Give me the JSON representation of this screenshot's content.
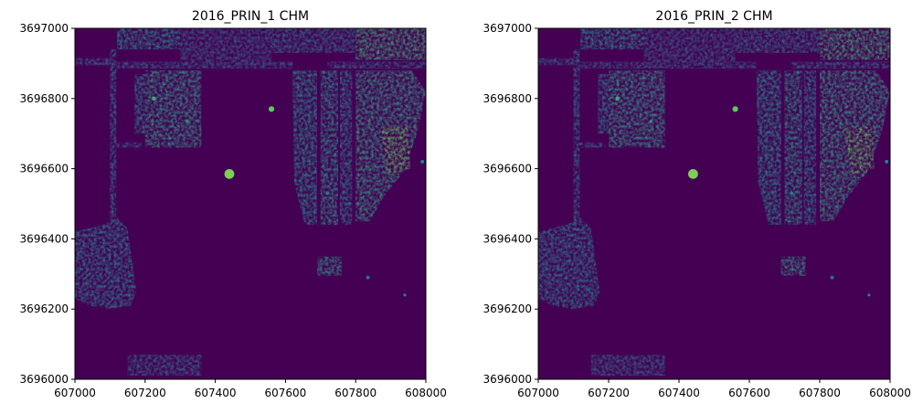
{
  "figure": {
    "panel_count": 2,
    "colormap": "viridis",
    "colors": {
      "background": "#ffffff",
      "viridis_low": "#440154",
      "viridis_mid": "#21918c",
      "viridis_high": "#fde725"
    }
  },
  "chart_data": [
    {
      "type": "heatmap",
      "title": "2016_PRIN_1 CHM",
      "xlabel": "",
      "ylabel": "",
      "xlim": [
        607000,
        608000
      ],
      "ylim": [
        3696000,
        3697000
      ],
      "xticks": [
        607000,
        607200,
        607400,
        607600,
        607800,
        608000
      ],
      "yticks": [
        3696000,
        3696200,
        3696400,
        3696600,
        3696800,
        3697000
      ],
      "xtick_labels": [
        "607000",
        "607200",
        "607400",
        "607600",
        "607800",
        "608000"
      ],
      "ytick_labels": [
        "3696000",
        "3696200",
        "3696400",
        "3696600",
        "3696800",
        "3697000"
      ],
      "grid": false,
      "colorbar": false
    },
    {
      "type": "heatmap",
      "title": "2016_PRIN_2 CHM",
      "xlabel": "",
      "ylabel": "",
      "xlim": [
        607000,
        608000
      ],
      "ylim": [
        3696000,
        3697000
      ],
      "xticks": [
        607000,
        607200,
        607400,
        607600,
        607800,
        608000
      ],
      "yticks": [
        3696000,
        3696200,
        3696400,
        3696600,
        3696800,
        3697000
      ],
      "xtick_labels": [
        "607000",
        "607200",
        "607400",
        "607600",
        "607800",
        "608000"
      ],
      "ytick_labels": [
        "3696000",
        "3696200",
        "3696400",
        "3696600",
        "3696800",
        "3697000"
      ],
      "grid": false,
      "colorbar": false
    }
  ],
  "canopy_regions": [
    {
      "kind": "rect",
      "x": [
        607100,
        607118
      ],
      "y": [
        3696250,
        3696940
      ],
      "level": 0.42
    },
    {
      "kind": "rect",
      "x": [
        607000,
        607110
      ],
      "y": [
        3696895,
        3696915
      ],
      "level": 0.35
    },
    {
      "kind": "rect",
      "x": [
        607110,
        607620
      ],
      "y": [
        3696885,
        3696905
      ],
      "level": 0.35
    },
    {
      "kind": "rect",
      "x": [
        607720,
        608000
      ],
      "y": [
        3696885,
        3696905
      ],
      "level": 0.35
    },
    {
      "kind": "rect",
      "x": [
        607100,
        607190
      ],
      "y": [
        3696660,
        3696675
      ],
      "level": 0.35
    },
    {
      "kind": "rect",
      "x": [
        607120,
        607300
      ],
      "y": [
        3696940,
        3697000
      ],
      "level": 0.5
    },
    {
      "kind": "rect",
      "x": [
        607300,
        607560
      ],
      "y": [
        3696905,
        3697000
      ],
      "level": 0.32
    },
    {
      "kind": "rect",
      "x": [
        607560,
        607800
      ],
      "y": [
        3696930,
        3697000
      ],
      "level": 0.38
    },
    {
      "kind": "rect",
      "x": [
        607800,
        608000
      ],
      "y": [
        3696910,
        3697000
      ],
      "level": 0.62
    },
    {
      "kind": "rect",
      "x": [
        607200,
        607360
      ],
      "y": [
        3696660,
        3696880
      ],
      "level": 0.55
    },
    {
      "kind": "rect",
      "x": [
        607170,
        607200
      ],
      "y": [
        3696700,
        3696870
      ],
      "level": 0.45
    },
    {
      "kind": "poly",
      "pts": [
        [
          607620,
          3696880
        ],
        [
          607690,
          3696880
        ],
        [
          607690,
          3696440
        ],
        [
          607655,
          3696440
        ],
        [
          607625,
          3696560
        ]
      ],
      "level": 0.5
    },
    {
      "kind": "poly",
      "pts": [
        [
          607700,
          3696880
        ],
        [
          607750,
          3696880
        ],
        [
          607750,
          3696440
        ],
        [
          607700,
          3696440
        ]
      ],
      "level": 0.52
    },
    {
      "kind": "poly",
      "pts": [
        [
          607755,
          3696880
        ],
        [
          607790,
          3696880
        ],
        [
          607790,
          3696440
        ],
        [
          607755,
          3696440
        ]
      ],
      "level": 0.45
    },
    {
      "kind": "poly",
      "pts": [
        [
          607800,
          3696880
        ],
        [
          607960,
          3696880
        ],
        [
          608000,
          3696820
        ],
        [
          607975,
          3696700
        ],
        [
          607935,
          3696590
        ],
        [
          607880,
          3696520
        ],
        [
          607840,
          3696450
        ],
        [
          607800,
          3696450
        ]
      ],
      "level": 0.56
    },
    {
      "kind": "poly",
      "pts": [
        [
          607870,
          3696720
        ],
        [
          607950,
          3696720
        ],
        [
          607955,
          3696600
        ],
        [
          607890,
          3696580
        ]
      ],
      "level": 0.72
    },
    {
      "kind": "poly",
      "pts": [
        [
          607000,
          3696420
        ],
        [
          607080,
          3696440
        ],
        [
          607120,
          3696460
        ],
        [
          607150,
          3696430
        ],
        [
          607175,
          3696250
        ],
        [
          607160,
          3696210
        ],
        [
          607100,
          3696200
        ],
        [
          607040,
          3696210
        ],
        [
          607000,
          3696230
        ]
      ],
      "level": 0.45
    },
    {
      "kind": "rect",
      "x": [
        607690,
        607760
      ],
      "y": [
        3696295,
        3696350
      ],
      "level": 0.55
    },
    {
      "kind": "rect",
      "x": [
        607150,
        607360
      ],
      "y": [
        3696010,
        3696070
      ],
      "level": 0.35
    },
    {
      "kind": "circle",
      "x": 607440,
      "y": 3696585,
      "r": 14,
      "level": 0.8
    },
    {
      "kind": "circle",
      "x": 607560,
      "y": 3696770,
      "r": 8,
      "level": 0.75
    },
    {
      "kind": "circle",
      "x": 607225,
      "y": 3696800,
      "r": 6,
      "level": 0.6
    },
    {
      "kind": "circle",
      "x": 607320,
      "y": 3696735,
      "r": 4,
      "level": 0.55
    },
    {
      "kind": "circle",
      "x": 607940,
      "y": 3696240,
      "r": 4,
      "level": 0.45
    },
    {
      "kind": "circle",
      "x": 607990,
      "y": 3696620,
      "r": 5,
      "level": 0.45
    },
    {
      "kind": "circle",
      "x": 607720,
      "y": 3696530,
      "r": 5,
      "level": 0.4
    },
    {
      "kind": "circle",
      "x": 607835,
      "y": 3696290,
      "r": 5,
      "level": 0.4
    }
  ]
}
